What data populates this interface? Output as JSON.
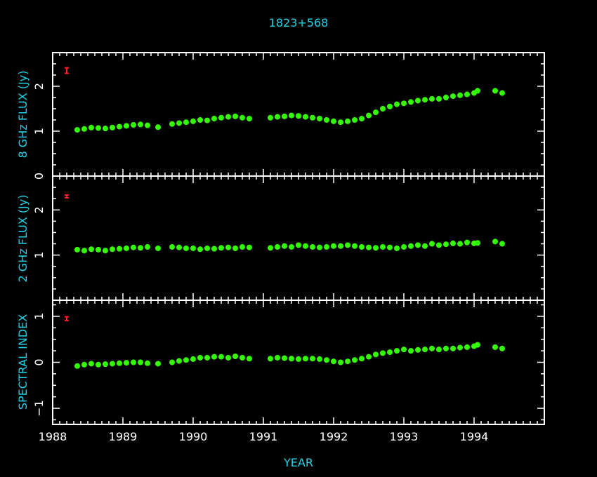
{
  "chart_data": {
    "type": "scatter",
    "title": "1823+568",
    "xlabel": "YEAR",
    "xlim": [
      1988.0,
      1995.0
    ],
    "xticks": [
      "1988",
      "1989",
      "1990",
      "1991",
      "1992",
      "1993",
      "1994"
    ],
    "colors": {
      "background": "#000000",
      "axes": "#ffffff",
      "labels": "#22d3e6",
      "points": "#33ff00",
      "error_bar": "#ff2020"
    },
    "panels": [
      {
        "ylabel": "8 GHz FLUX (Jy)",
        "ylim": [
          0,
          2.75
        ],
        "yticks": [
          "0",
          "1",
          "2"
        ],
        "error_bar": {
          "x": 1988.2,
          "y": 2.35,
          "err": 0.06
        },
        "x": [
          1988.35,
          1988.45,
          1988.55,
          1988.65,
          1988.75,
          1988.85,
          1988.95,
          1989.05,
          1989.15,
          1989.25,
          1989.35,
          1989.5,
          1989.7,
          1989.8,
          1989.9,
          1990.0,
          1990.1,
          1990.2,
          1990.3,
          1990.4,
          1990.5,
          1990.6,
          1990.7,
          1990.8,
          1991.1,
          1991.2,
          1991.3,
          1991.4,
          1991.5,
          1991.6,
          1991.7,
          1991.8,
          1991.9,
          1992.0,
          1992.1,
          1992.2,
          1992.3,
          1992.4,
          1992.5,
          1992.6,
          1992.7,
          1992.8,
          1992.9,
          1993.0,
          1993.1,
          1993.2,
          1993.3,
          1993.4,
          1993.5,
          1993.6,
          1993.7,
          1993.8,
          1993.9,
          1994.0,
          1994.05,
          1994.3,
          1994.4
        ],
        "y": [
          1.03,
          1.05,
          1.08,
          1.07,
          1.06,
          1.08,
          1.1,
          1.12,
          1.14,
          1.15,
          1.13,
          1.09,
          1.16,
          1.18,
          1.2,
          1.22,
          1.25,
          1.24,
          1.28,
          1.3,
          1.32,
          1.33,
          1.3,
          1.28,
          1.3,
          1.32,
          1.33,
          1.35,
          1.34,
          1.32,
          1.3,
          1.28,
          1.25,
          1.22,
          1.2,
          1.22,
          1.25,
          1.28,
          1.35,
          1.42,
          1.5,
          1.55,
          1.6,
          1.62,
          1.65,
          1.68,
          1.7,
          1.72,
          1.72,
          1.75,
          1.78,
          1.8,
          1.82,
          1.85,
          1.9,
          1.9,
          1.85
        ]
      },
      {
        "ylabel": "2 GHz FLUX (Jy)",
        "ylim": [
          0,
          2.75
        ],
        "yticks": [
          "1",
          "2"
        ],
        "error_bar": {
          "x": 1988.2,
          "y": 2.3,
          "err": 0.03
        },
        "x": [
          1988.35,
          1988.45,
          1988.55,
          1988.65,
          1988.75,
          1988.85,
          1988.95,
          1989.05,
          1989.15,
          1989.25,
          1989.35,
          1989.5,
          1989.7,
          1989.8,
          1989.9,
          1990.0,
          1990.1,
          1990.2,
          1990.3,
          1990.4,
          1990.5,
          1990.6,
          1990.7,
          1990.8,
          1991.1,
          1991.2,
          1991.3,
          1991.4,
          1991.5,
          1991.6,
          1991.7,
          1991.8,
          1991.9,
          1992.0,
          1992.1,
          1992.2,
          1992.3,
          1992.4,
          1992.5,
          1992.6,
          1992.7,
          1992.8,
          1992.9,
          1993.0,
          1993.1,
          1993.2,
          1993.3,
          1993.4,
          1993.5,
          1993.6,
          1993.7,
          1993.8,
          1993.9,
          1994.0,
          1994.05,
          1994.3,
          1994.4
        ],
        "y": [
          1.12,
          1.1,
          1.13,
          1.12,
          1.1,
          1.13,
          1.14,
          1.15,
          1.17,
          1.16,
          1.18,
          1.15,
          1.18,
          1.17,
          1.15,
          1.15,
          1.13,
          1.15,
          1.14,
          1.16,
          1.17,
          1.15,
          1.18,
          1.17,
          1.16,
          1.18,
          1.2,
          1.18,
          1.22,
          1.2,
          1.18,
          1.17,
          1.18,
          1.2,
          1.2,
          1.22,
          1.2,
          1.18,
          1.17,
          1.16,
          1.18,
          1.17,
          1.15,
          1.18,
          1.2,
          1.22,
          1.2,
          1.25,
          1.22,
          1.24,
          1.26,
          1.25,
          1.28,
          1.26,
          1.27,
          1.3,
          1.25
        ]
      },
      {
        "ylabel": "SPECTRAL INDEX",
        "ylim": [
          -1.35,
          1.35
        ],
        "yticks": [
          "−1",
          "0",
          "1"
        ],
        "error_bar": {
          "x": 1988.2,
          "y": 0.95,
          "err": 0.04
        },
        "x": [
          1988.35,
          1988.45,
          1988.55,
          1988.65,
          1988.75,
          1988.85,
          1988.95,
          1989.05,
          1989.15,
          1989.25,
          1989.35,
          1989.5,
          1989.7,
          1989.8,
          1989.9,
          1990.0,
          1990.1,
          1990.2,
          1990.3,
          1990.4,
          1990.5,
          1990.6,
          1990.7,
          1990.8,
          1991.1,
          1991.2,
          1991.3,
          1991.4,
          1991.5,
          1991.6,
          1991.7,
          1991.8,
          1991.9,
          1992.0,
          1992.1,
          1992.2,
          1992.3,
          1992.4,
          1992.5,
          1992.6,
          1992.7,
          1992.8,
          1992.9,
          1993.0,
          1993.1,
          1993.2,
          1993.3,
          1993.4,
          1993.5,
          1993.6,
          1993.7,
          1993.8,
          1993.9,
          1994.0,
          1994.05,
          1994.3,
          1994.4
        ],
        "y": [
          -0.08,
          -0.05,
          -0.03,
          -0.05,
          -0.04,
          -0.03,
          -0.02,
          -0.01,
          0.0,
          0.0,
          -0.02,
          -0.03,
          0.0,
          0.03,
          0.05,
          0.07,
          0.1,
          0.1,
          0.12,
          0.12,
          0.1,
          0.13,
          0.1,
          0.08,
          0.08,
          0.1,
          0.09,
          0.08,
          0.07,
          0.08,
          0.08,
          0.07,
          0.05,
          0.02,
          0.0,
          0.02,
          0.05,
          0.08,
          0.12,
          0.17,
          0.2,
          0.22,
          0.25,
          0.28,
          0.25,
          0.27,
          0.28,
          0.3,
          0.28,
          0.3,
          0.3,
          0.32,
          0.33,
          0.35,
          0.38,
          0.33,
          0.3
        ]
      }
    ]
  }
}
